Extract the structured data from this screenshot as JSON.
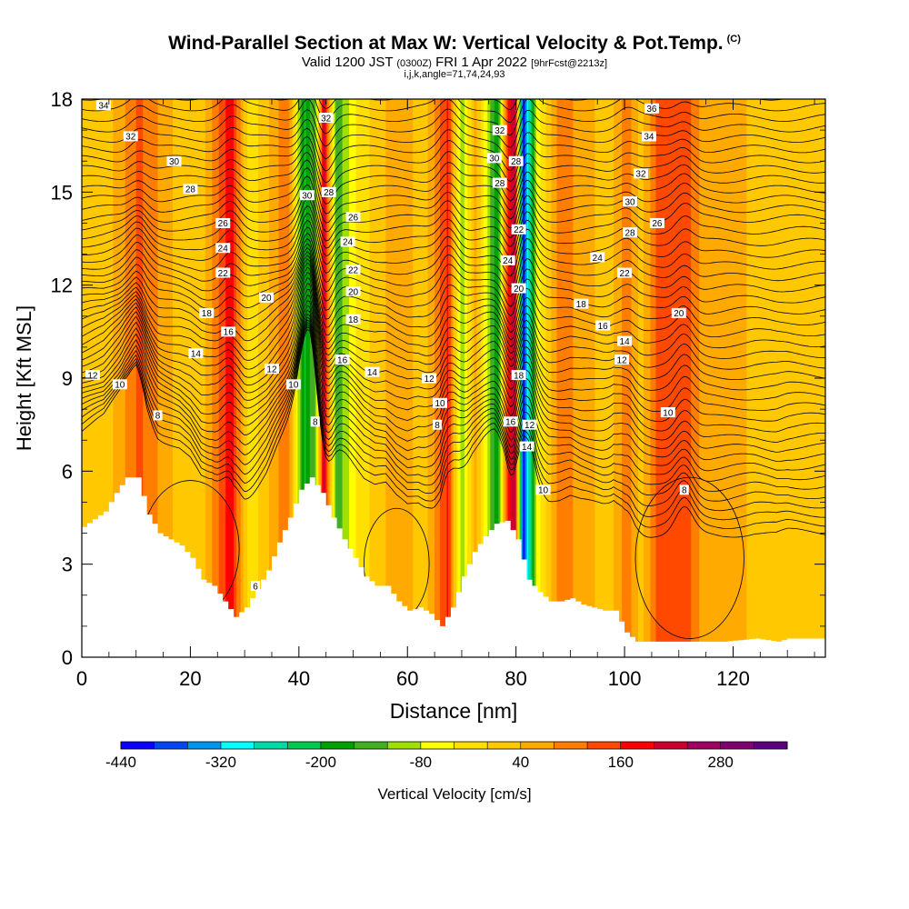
{
  "header": {
    "title": "Wind-Parallel Section at Max W: Vertical Velocity & Pot.Temp.",
    "copyright": "(C)",
    "valid_prefix": "Valid 1200 JST",
    "valid_utc": "(0300Z)",
    "valid_date": "FRI 1 Apr 2022",
    "forecast": "[9hrFcst@2213z]",
    "indices": "i,j,k,angle=71,74,24,93"
  },
  "chart_data": {
    "type": "heatmap",
    "title": "Wind-Parallel Section at Max W: Vertical Velocity & Pot.Temp.",
    "xlabel": "Distance [nm]",
    "ylabel": "Height [Kft MSL]",
    "xlim": [
      0,
      137
    ],
    "ylim": [
      0,
      18
    ],
    "x_ticks": [
      "0",
      "20",
      "40",
      "60",
      "80",
      "100",
      "120"
    ],
    "y_ticks": [
      "0",
      "3",
      "6",
      "9",
      "12",
      "15",
      "18"
    ],
    "terrain": [
      [
        0,
        4.2
      ],
      [
        4,
        4.7
      ],
      [
        6,
        5.3
      ],
      [
        8,
        5.8
      ],
      [
        10,
        5.8
      ],
      [
        12,
        4.6
      ],
      [
        14,
        4.0
      ],
      [
        16,
        3.8
      ],
      [
        18,
        3.6
      ],
      [
        20,
        3.2
      ],
      [
        22,
        2.5
      ],
      [
        24,
        2.3
      ],
      [
        26,
        1.8
      ],
      [
        28,
        1.3
      ],
      [
        30,
        1.6
      ],
      [
        32,
        2.2
      ],
      [
        34,
        2.8
      ],
      [
        36,
        3.7
      ],
      [
        38,
        4.5
      ],
      [
        40,
        5.4
      ],
      [
        42,
        5.8
      ],
      [
        44,
        5.3
      ],
      [
        46,
        4.5
      ],
      [
        48,
        3.8
      ],
      [
        50,
        3.2
      ],
      [
        52,
        2.6
      ],
      [
        54,
        2.3
      ],
      [
        56,
        2.3
      ],
      [
        58,
        1.8
      ],
      [
        60,
        1.5
      ],
      [
        62,
        1.6
      ],
      [
        64,
        1.4
      ],
      [
        66,
        1.0
      ],
      [
        68,
        1.6
      ],
      [
        70,
        2.6
      ],
      [
        72,
        3.4
      ],
      [
        74,
        3.9
      ],
      [
        76,
        4.3
      ],
      [
        78,
        4.4
      ],
      [
        80,
        3.8
      ],
      [
        82,
        2.5
      ],
      [
        84,
        2.1
      ],
      [
        86,
        1.8
      ],
      [
        88,
        1.8
      ],
      [
        90,
        1.9
      ],
      [
        92,
        1.7
      ],
      [
        94,
        1.6
      ],
      [
        96,
        1.5
      ],
      [
        98,
        1.5
      ],
      [
        100,
        0.8
      ],
      [
        102,
        0.5
      ],
      [
        106,
        0.5
      ],
      [
        110,
        0.5
      ],
      [
        118,
        0.5
      ],
      [
        124,
        0.6
      ],
      [
        128,
        0.5
      ],
      [
        130,
        0.6
      ],
      [
        136,
        0.6
      ]
    ],
    "velocity_columns": [
      {
        "x": 1,
        "w": 18
      },
      {
        "x": 4,
        "w": 5
      },
      {
        "x": 10.5,
        "w": 130
      },
      {
        "x": 17,
        "w": 35
      },
      {
        "x": 22,
        "w": 18
      },
      {
        "x": 27.5,
        "w": 190
      },
      {
        "x": 31,
        "w": -35
      },
      {
        "x": 38,
        "w": 120
      },
      {
        "x": 41,
        "w": -210
      },
      {
        "x": 43,
        "w": -120
      },
      {
        "x": 44.6,
        "w": 220
      },
      {
        "x": 47,
        "w": -160
      },
      {
        "x": 50,
        "w": -50
      },
      {
        "x": 55,
        "w": 30
      },
      {
        "x": 59,
        "w": 70
      },
      {
        "x": 63,
        "w": 10
      },
      {
        "x": 67.5,
        "w": 170
      },
      {
        "x": 70,
        "w": -120
      },
      {
        "x": 72.5,
        "w": 60
      },
      {
        "x": 76.5,
        "w": -200
      },
      {
        "x": 78.5,
        "w": 160
      },
      {
        "x": 79.8,
        "w": 250
      },
      {
        "x": 81.3,
        "w": -420
      },
      {
        "x": 82.5,
        "w": -260
      },
      {
        "x": 84,
        "w": -60
      },
      {
        "x": 88,
        "w": 100
      },
      {
        "x": 93,
        "w": 60
      },
      {
        "x": 97,
        "w": 10
      },
      {
        "x": 100.5,
        "w": 110
      },
      {
        "x": 103,
        "w": 20
      },
      {
        "x": 106,
        "w": 130
      },
      {
        "x": 111,
        "w": 160
      },
      {
        "x": 115,
        "w": 40
      },
      {
        "x": 120,
        "w": 60
      },
      {
        "x": 125,
        "w": 20
      },
      {
        "x": 130,
        "w": 10
      },
      {
        "x": 135,
        "w": 15
      }
    ],
    "theta_labels": [
      {
        "x": 4,
        "y": 17.8,
        "v": "34"
      },
      {
        "x": 9,
        "y": 16.8,
        "v": "32"
      },
      {
        "x": 17,
        "y": 16.0,
        "v": "30"
      },
      {
        "x": 20,
        "y": 15.1,
        "v": "28"
      },
      {
        "x": 26,
        "y": 14.0,
        "v": "26"
      },
      {
        "x": 26,
        "y": 13.2,
        "v": "24"
      },
      {
        "x": 26,
        "y": 12.4,
        "v": "22"
      },
      {
        "x": 34,
        "y": 11.6,
        "v": "20"
      },
      {
        "x": 23,
        "y": 11.1,
        "v": "18"
      },
      {
        "x": 27,
        "y": 10.5,
        "v": "16"
      },
      {
        "x": 21,
        "y": 9.8,
        "v": "14"
      },
      {
        "x": 35,
        "y": 9.3,
        "v": "12"
      },
      {
        "x": 2,
        "y": 9.1,
        "v": "12"
      },
      {
        "x": 7,
        "y": 8.8,
        "v": "10"
      },
      {
        "x": 39,
        "y": 8.8,
        "v": "10"
      },
      {
        "x": 14,
        "y": 7.8,
        "v": "8"
      },
      {
        "x": 43,
        "y": 7.6,
        "v": "8"
      },
      {
        "x": 32,
        "y": 2.3,
        "v": "6"
      },
      {
        "x": 45,
        "y": 17.4,
        "v": "32"
      },
      {
        "x": 41.5,
        "y": 14.9,
        "v": "30"
      },
      {
        "x": 45.5,
        "y": 15.0,
        "v": "28"
      },
      {
        "x": 50,
        "y": 14.2,
        "v": "26"
      },
      {
        "x": 49,
        "y": 13.4,
        "v": "24"
      },
      {
        "x": 50,
        "y": 12.5,
        "v": "22"
      },
      {
        "x": 50,
        "y": 11.8,
        "v": "20"
      },
      {
        "x": 50,
        "y": 10.9,
        "v": "18"
      },
      {
        "x": 48,
        "y": 9.6,
        "v": "16"
      },
      {
        "x": 53.5,
        "y": 9.2,
        "v": "14"
      },
      {
        "x": 64,
        "y": 9.0,
        "v": "12"
      },
      {
        "x": 66,
        "y": 8.2,
        "v": "10"
      },
      {
        "x": 65.5,
        "y": 7.5,
        "v": "8"
      },
      {
        "x": 77,
        "y": 17.0,
        "v": "32"
      },
      {
        "x": 76,
        "y": 16.1,
        "v": "30"
      },
      {
        "x": 80,
        "y": 16.0,
        "v": "28"
      },
      {
        "x": 77,
        "y": 15.3,
        "v": "28"
      },
      {
        "x": 80.5,
        "y": 13.8,
        "v": "22"
      },
      {
        "x": 78.5,
        "y": 12.8,
        "v": "24"
      },
      {
        "x": 80.5,
        "y": 11.9,
        "v": "20"
      },
      {
        "x": 80.5,
        "y": 9.1,
        "v": "18"
      },
      {
        "x": 79,
        "y": 7.6,
        "v": "16"
      },
      {
        "x": 82.5,
        "y": 7.5,
        "v": "12"
      },
      {
        "x": 82,
        "y": 6.8,
        "v": "14"
      },
      {
        "x": 85,
        "y": 5.4,
        "v": "10"
      },
      {
        "x": 105,
        "y": 17.7,
        "v": "36"
      },
      {
        "x": 104.5,
        "y": 16.8,
        "v": "34"
      },
      {
        "x": 103,
        "y": 15.6,
        "v": "32"
      },
      {
        "x": 101,
        "y": 14.7,
        "v": "30"
      },
      {
        "x": 101,
        "y": 13.7,
        "v": "28"
      },
      {
        "x": 106,
        "y": 14.0,
        "v": "26"
      },
      {
        "x": 95,
        "y": 12.9,
        "v": "24"
      },
      {
        "x": 100,
        "y": 12.4,
        "v": "22"
      },
      {
        "x": 92,
        "y": 11.4,
        "v": "18"
      },
      {
        "x": 110,
        "y": 11.1,
        "v": "20"
      },
      {
        "x": 96,
        "y": 10.7,
        "v": "16"
      },
      {
        "x": 100,
        "y": 10.2,
        "v": "14"
      },
      {
        "x": 99.5,
        "y": 9.6,
        "v": "12"
      },
      {
        "x": 108,
        "y": 7.9,
        "v": "10"
      },
      {
        "x": 111,
        "y": 5.4,
        "v": "8"
      }
    ],
    "colorbar": {
      "label": "Vertical Velocity [cm/s]",
      "tick_labels": [
        "-440",
        "-320",
        "-200",
        "-80",
        "40",
        "160",
        "280"
      ],
      "colors": [
        "#0a00ff",
        "#0045f0",
        "#0096f0",
        "#00ffff",
        "#00d8a8",
        "#00c850",
        "#00a000",
        "#40b020",
        "#a0e000",
        "#ffff00",
        "#ffe000",
        "#ffc800",
        "#ffaa00",
        "#ff7e00",
        "#ff4800",
        "#ff0000",
        "#cc0030",
        "#a00060",
        "#800070",
        "#5a0080"
      ]
    }
  }
}
